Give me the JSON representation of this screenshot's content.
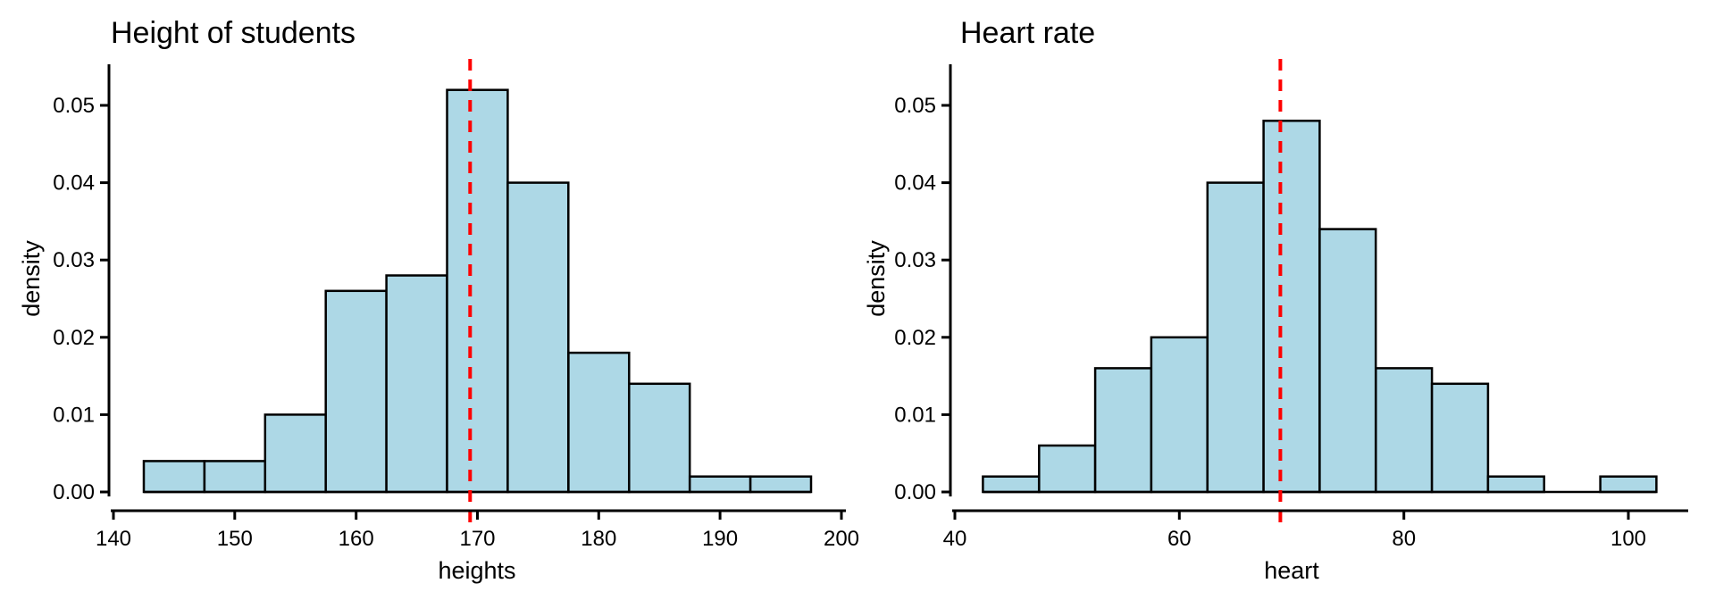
{
  "figure": {
    "background": "#FFFFFF",
    "axis_color": "#000000",
    "text_color": "#000000"
  },
  "chart_data": [
    {
      "type": "bar",
      "subtype": "histogram",
      "title": "Height of students",
      "xlabel": "heights",
      "ylabel": "density",
      "bin_width": 5,
      "bin_edges": [
        142.5,
        147.5,
        152.5,
        157.5,
        162.5,
        167.5,
        172.5,
        177.5,
        182.5,
        187.5,
        192.5,
        197.5
      ],
      "densities": [
        0.004,
        0.004,
        0.01,
        0.026,
        0.028,
        0.052,
        0.04,
        0.018,
        0.014,
        0.002,
        0.002
      ],
      "mean_line_x": 169.4,
      "x_ticks": [
        140,
        150,
        160,
        170,
        180,
        190,
        200
      ],
      "y_ticks": [
        0,
        0.01,
        0.02,
        0.03,
        0.04,
        0.05
      ],
      "xlim": [
        139.8,
        200.4
      ],
      "ylim": [
        0,
        0.0553
      ],
      "grid": false,
      "legend": "none",
      "bar_fill": "#ADD8E6",
      "bar_edge": "#000000",
      "mean_line_color": "#FF0000",
      "mean_line_style": "dashed"
    },
    {
      "type": "bar",
      "subtype": "histogram",
      "title": "Heart rate",
      "xlabel": "heart",
      "ylabel": "density",
      "bin_width": 5,
      "bin_edges": [
        42.5,
        47.5,
        52.5,
        57.5,
        62.5,
        67.5,
        72.5,
        77.5,
        82.5,
        87.5,
        92.5,
        97.5,
        102.5
      ],
      "densities": [
        0.002,
        0.006,
        0.016,
        0.02,
        0.04,
        0.048,
        0.034,
        0.016,
        0.014,
        0.002,
        0.0,
        0.002
      ],
      "mean_line_x": 69,
      "x_ticks": [
        40,
        60,
        80,
        100
      ],
      "y_ticks": [
        0,
        0.01,
        0.02,
        0.03,
        0.04,
        0.05
      ],
      "xlim": [
        39.7,
        105.3
      ],
      "ylim": [
        0,
        0.0553
      ],
      "grid": false,
      "legend": "none",
      "bar_fill": "#ADD8E6",
      "bar_edge": "#000000",
      "mean_line_color": "#FF0000",
      "mean_line_style": "dashed"
    }
  ]
}
